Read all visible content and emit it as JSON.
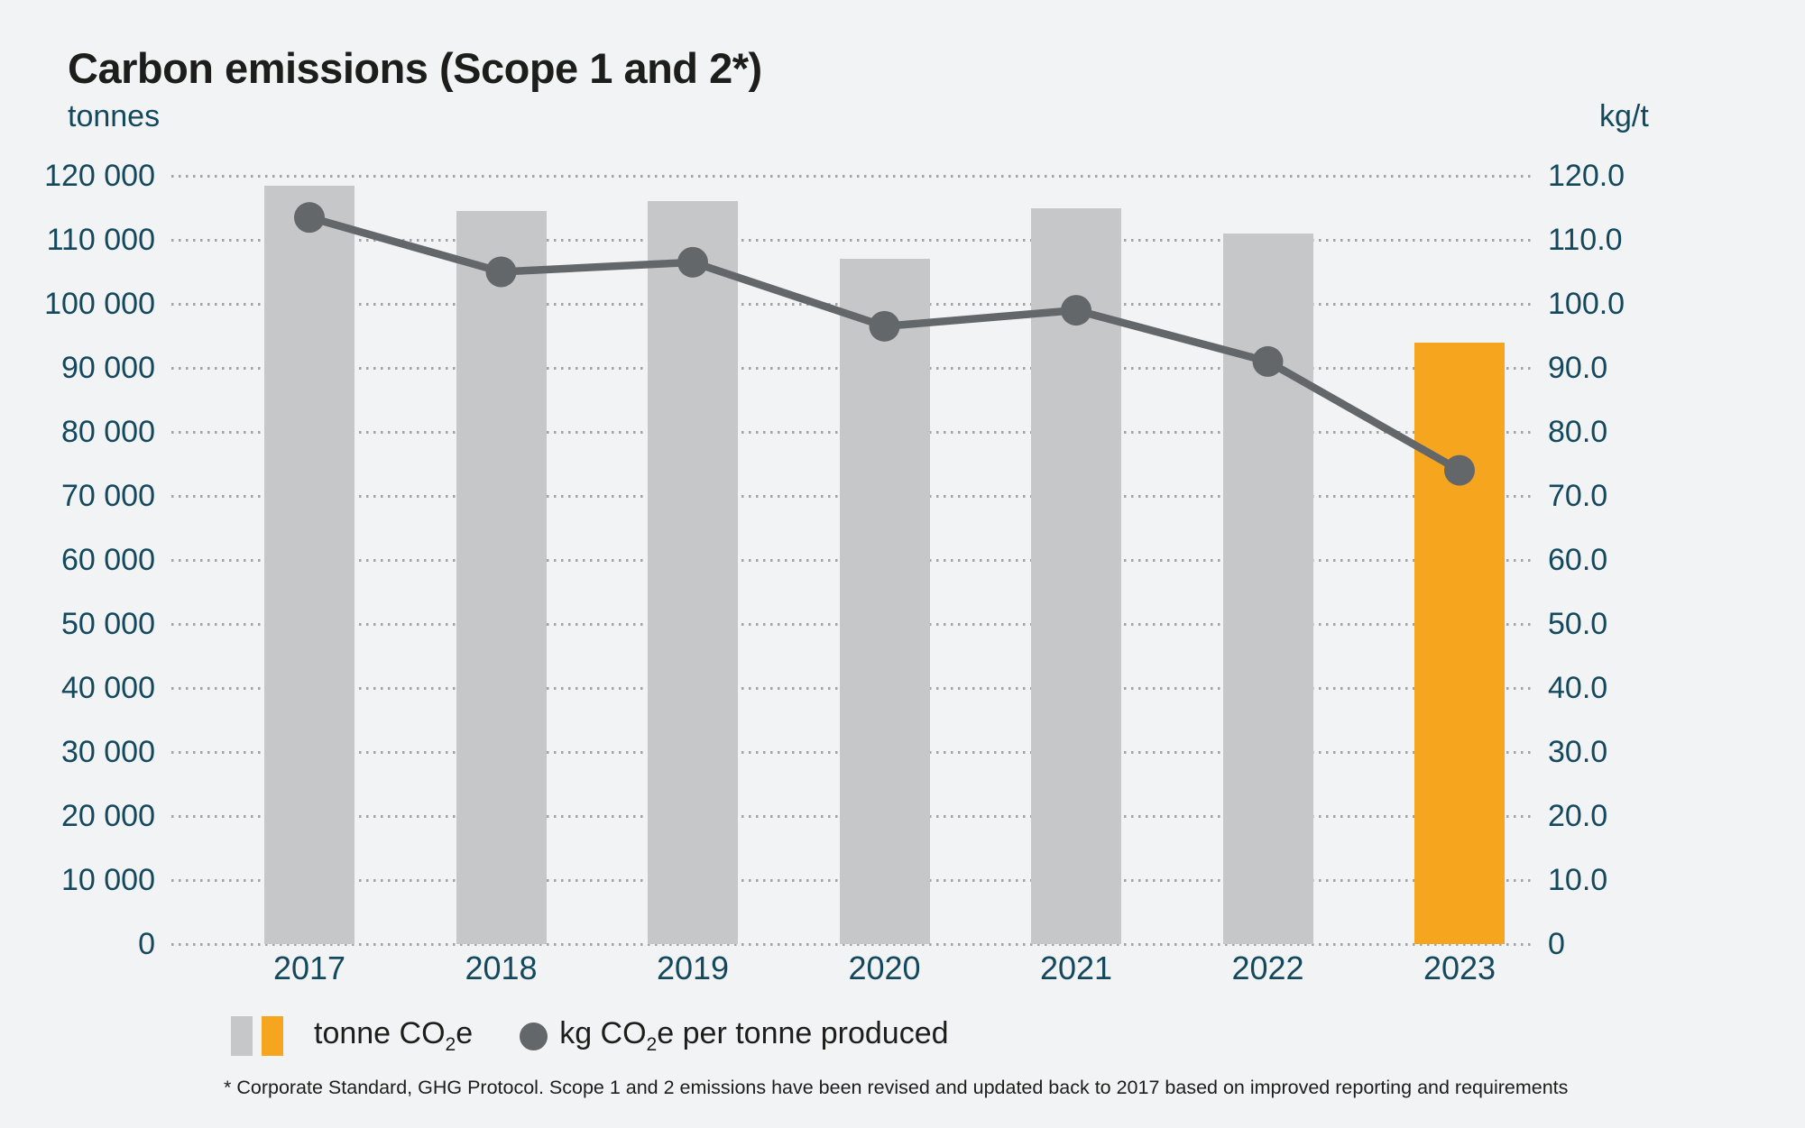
{
  "title": "Carbon emissions (Scope 1 and 2*)",
  "axes": {
    "left": {
      "unit": "tonnes",
      "ticks": [
        "120 000",
        "110 000",
        "100 000",
        "90 000",
        "80 000",
        "70 000",
        "60 000",
        "50 000",
        "40 000",
        "30 000",
        "20 000",
        "10 000",
        "0"
      ]
    },
    "right": {
      "unit": "kg/t",
      "ticks": [
        "120.0",
        "110.0",
        "100.0",
        "90.0",
        "80.0",
        "70.0",
        "60.0",
        "50.0",
        "40.0",
        "30.0",
        "20.0",
        "10.0",
        "0"
      ]
    }
  },
  "legend": {
    "bars_label": {
      "pre": "tonne CO",
      "sub": "2",
      "post": "e"
    },
    "line_label": {
      "pre": "kg CO",
      "sub": "2",
      "post": "e per tonne produced"
    }
  },
  "footnote": "* Corporate Standard, GHG Protocol. Scope 1 and 2 emissions have been revised and updated back to 2017 based on improved reporting and requirements",
  "colors": {
    "background": "#f2f3f5",
    "bar_gray": "#c6c7c9",
    "bar_highlight": "#f6a51f",
    "line": "#64676a",
    "axis_text": "#14485c",
    "title_text": "#1d1d1b",
    "gridline": "#a2a5a8"
  },
  "chart_data": {
    "type": "bar",
    "categories": [
      "2017",
      "2018",
      "2019",
      "2020",
      "2021",
      "2022",
      "2023"
    ],
    "series": [
      {
        "name": "tonne CO2e",
        "type": "bar",
        "axis": "left",
        "values": [
          118500,
          114500,
          116000,
          107000,
          115000,
          111000,
          94000
        ],
        "highlight_index": 6
      },
      {
        "name": "kg CO2e per tonne produced",
        "type": "line",
        "axis": "right",
        "values": [
          113.5,
          105.0,
          106.5,
          96.5,
          99.0,
          91.0,
          74.0
        ]
      }
    ],
    "left_ylim": [
      0,
      120000
    ],
    "right_ylim": [
      0,
      120
    ],
    "grid": "horizontal-dotted",
    "legend_position": "bottom-left",
    "xlabel": "",
    "ylabel_left": "tonnes",
    "ylabel_right": "kg/t"
  }
}
